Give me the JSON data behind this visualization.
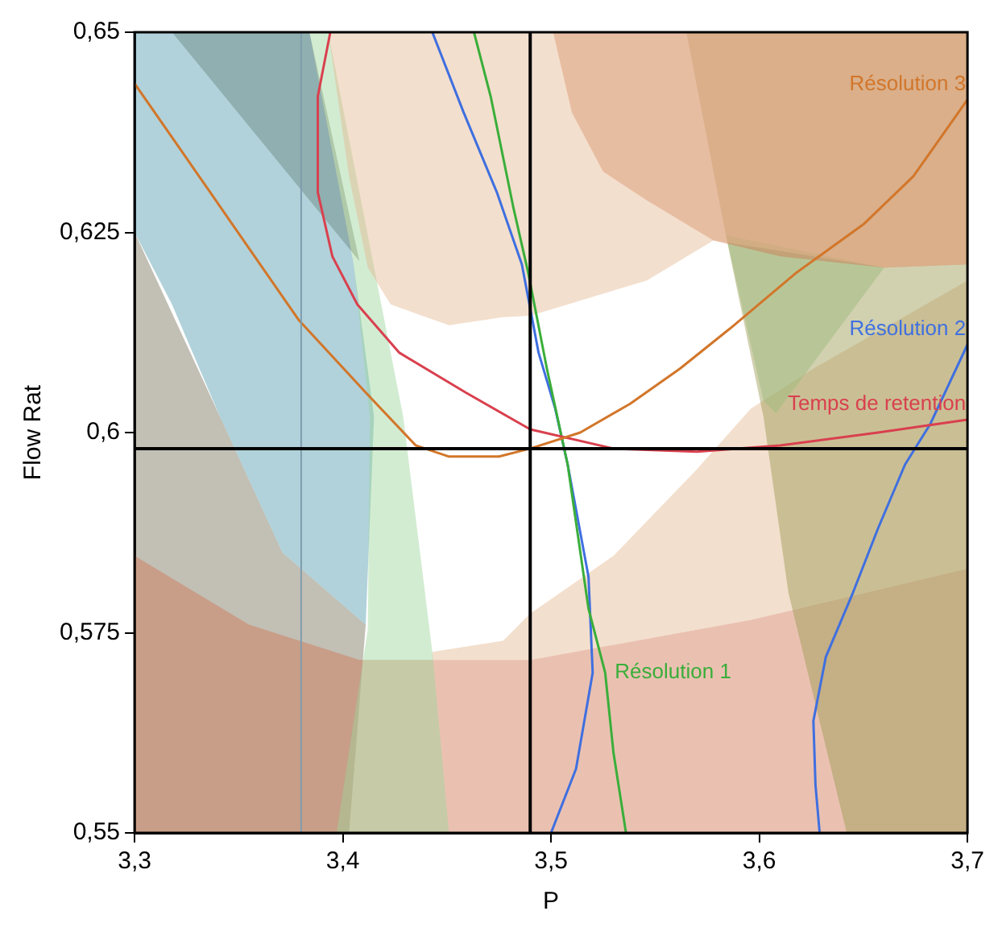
{
  "chart_data": {
    "type": "line",
    "xlabel": "P",
    "ylabel": "Flow Rat",
    "xlim": [
      3.3,
      3.7
    ],
    "ylim": [
      0.55,
      0.65
    ],
    "xticks": [
      {
        "value": 3.3,
        "label": "3,3"
      },
      {
        "value": 3.4,
        "label": "3,4"
      },
      {
        "value": 3.5,
        "label": "3,5"
      },
      {
        "value": 3.6,
        "label": "3,6"
      },
      {
        "value": 3.7,
        "label": "3,7"
      }
    ],
    "yticks": [
      {
        "value": 0.55,
        "label": "0,55"
      },
      {
        "value": 0.575,
        "label": "0,575"
      },
      {
        "value": 0.6,
        "label": "0,6"
      },
      {
        "value": 0.625,
        "label": "0,625"
      },
      {
        "value": 0.65,
        "label": "0,65"
      }
    ],
    "grid": false,
    "legend": false,
    "series": [
      {
        "type": "area",
        "color": "#e5b991",
        "x": [
          3.393,
          3.7,
          3.7,
          3.66,
          3.578,
          3.546,
          3.49,
          3.477,
          3.451,
          3.423,
          3.412,
          3.403
        ],
        "values": [
          0.65,
          0.65,
          0.621,
          0.6206,
          0.624,
          0.619,
          0.6146,
          0.6144,
          0.6134,
          0.616,
          0.6206,
          0.632
        ]
      },
      {
        "type": "area",
        "color": "#d17551",
        "x": [
          3.501,
          3.7,
          3.7,
          3.66,
          3.61,
          3.578,
          3.546,
          3.525,
          3.51
        ],
        "values": [
          0.65,
          0.65,
          0.621,
          0.6206,
          0.622,
          0.624,
          0.629,
          0.6326,
          0.64
        ]
      },
      {
        "type": "area",
        "color": "#9a9a50",
        "x": [
          3.565,
          3.7,
          3.7,
          3.642,
          3.614,
          3.602,
          3.584
        ],
        "values": [
          0.65,
          0.65,
          0.55,
          0.55,
          0.58,
          0.602,
          0.6246
        ]
      },
      {
        "type": "area",
        "color": "#9bd59b",
        "x": [
          3.384,
          3.393,
          3.429,
          3.443,
          3.451,
          3.397,
          3.412,
          3.413,
          3.405
        ],
        "values": [
          0.65,
          0.65,
          0.602,
          0.5726,
          0.55,
          0.55,
          0.5754,
          0.602,
          0.6214
        ]
      },
      {
        "type": "area",
        "color": "#9bd59b",
        "x": [
          3.584,
          3.66,
          3.608,
          3.602
        ],
        "values": [
          0.6246,
          0.6206,
          0.6024,
          0.604
        ]
      },
      {
        "type": "area",
        "color": "#e5b991",
        "x": [
          3.443,
          3.477,
          3.49,
          3.53,
          3.57,
          3.596,
          3.626,
          3.7,
          3.7,
          3.596,
          3.49,
          3.443
        ],
        "values": [
          0.5726,
          0.574,
          0.5774,
          0.5846,
          0.5954,
          0.603,
          0.608,
          0.619,
          0.583,
          0.5766,
          0.5716,
          0.5716
        ]
      },
      {
        "type": "area",
        "color": "#d17551",
        "x": [
          3.3,
          3.355,
          3.408,
          3.49,
          3.596,
          3.7,
          3.7,
          3.3
        ],
        "values": [
          0.5846,
          0.576,
          0.5716,
          0.5716,
          0.5766,
          0.583,
          0.55,
          0.55
        ]
      },
      {
        "type": "area",
        "color": "#539bad",
        "x": [
          3.3,
          3.384,
          3.405,
          3.415,
          3.411,
          3.371,
          3.341,
          3.318,
          3.3
        ],
        "values": [
          0.65,
          0.65,
          0.6214,
          0.602,
          0.576,
          0.585,
          0.602,
          0.616,
          0.625
        ]
      },
      {
        "type": "area",
        "color": "#77705a",
        "x": [
          3.318,
          3.384,
          3.408
        ],
        "values": [
          0.65,
          0.65,
          0.6214
        ]
      },
      {
        "type": "area",
        "color": "#77705a",
        "x": [
          3.3,
          3.341,
          3.371,
          3.411,
          3.403,
          3.3
        ],
        "values": [
          0.625,
          0.602,
          0.585,
          0.576,
          0.55,
          0.55
        ]
      },
      {
        "name": "Résolution 3",
        "color": "#d2762a",
        "x": [
          3.3,
          3.323,
          3.347,
          3.379,
          3.411,
          3.435,
          3.451,
          3.475,
          3.49,
          3.514,
          3.538,
          3.562,
          3.586,
          3.618,
          3.65,
          3.674,
          3.7
        ],
        "values": [
          0.6436,
          0.635,
          0.626,
          0.614,
          0.605,
          0.5984,
          0.597,
          0.597,
          0.598,
          0.6,
          0.6036,
          0.608,
          0.613,
          0.62,
          0.626,
          0.632,
          0.6416
        ]
      },
      {
        "name": "Temps de retention",
        "color": "#d9404e",
        "x": [
          3.394,
          3.388,
          3.388,
          3.395,
          3.407,
          3.427,
          3.459,
          3.49,
          3.53,
          3.57,
          3.61,
          3.657,
          3.7
        ],
        "values": [
          0.65,
          0.642,
          0.63,
          0.622,
          0.616,
          0.61,
          0.605,
          0.6004,
          0.598,
          0.5976,
          0.5984,
          0.6,
          0.6016
        ]
      },
      {
        "name": "Résolution 1",
        "color": "#3aae3a",
        "x": [
          3.536,
          3.53,
          3.526,
          null,
          3.463,
          3.471,
          3.482,
          3.489,
          3.498,
          3.508,
          3.518,
          3.526
        ],
        "values": [
          0.55,
          0.56,
          0.57,
          null,
          0.65,
          0.642,
          0.628,
          0.62,
          0.608,
          0.596,
          0.578,
          0.57
        ]
      },
      {
        "name": "Résolution 2",
        "color": "#3f6fe0",
        "x": [
          3.443,
          3.458,
          3.474,
          3.486,
          3.494,
          3.502,
          3.508,
          3.518,
          3.52,
          3.512,
          3.5,
          null,
          3.629,
          3.627,
          3.626,
          3.632,
          3.645,
          3.657,
          3.67,
          3.682,
          3.7
        ],
        "values": [
          0.65,
          0.64,
          0.63,
          0.621,
          0.61,
          0.603,
          0.596,
          0.582,
          0.57,
          0.558,
          0.55,
          null,
          0.55,
          0.556,
          0.564,
          0.572,
          0.58,
          0.588,
          0.596,
          0.601,
          0.611
        ]
      }
    ],
    "ref_lines": [
      {
        "axis": "x",
        "value": 3.38,
        "color": "#7f9cae"
      },
      {
        "axis": "x",
        "value": 3.49,
        "color": "#000000"
      },
      {
        "axis": "y",
        "value": 0.598,
        "color": "#000000"
      }
    ]
  }
}
